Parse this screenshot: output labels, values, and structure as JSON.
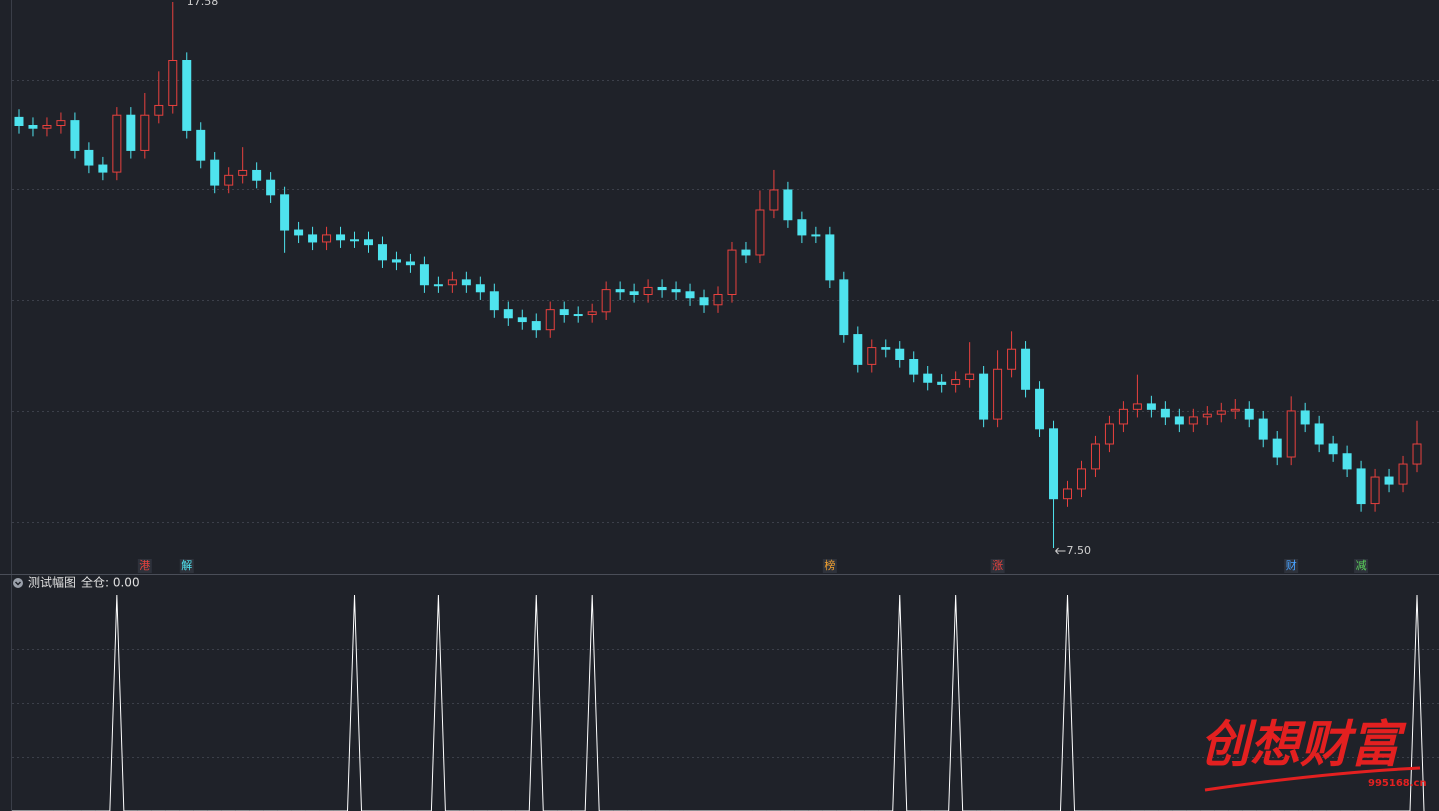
{
  "chart_data": {
    "type": "candlestick",
    "ylim": [
      7.5,
      17.58
    ],
    "gridlines": [
      16.14,
      14.13,
      12.08,
      10.03,
      7.98
    ],
    "up_color": "#e8413e",
    "down_color": "#4fe3ee",
    "open": [
      15.45,
      15.3,
      15.25,
      15.3,
      15.39,
      14.84,
      14.57,
      14.44,
      15.49,
      14.84,
      15.49,
      15.67,
      16.5,
      15.21,
      14.66,
      14.2,
      14.38,
      14.47,
      14.29,
      14.02,
      13.37,
      13.28,
      13.15,
      13.28,
      13.19,
      13.19,
      13.1,
      12.82,
      12.78,
      12.73,
      12.36,
      12.36,
      12.45,
      12.36,
      12.23,
      11.9,
      11.75,
      11.68,
      11.53,
      11.9,
      11.81,
      11.81,
      11.86,
      12.27,
      12.23,
      12.18,
      12.31,
      12.27,
      12.23,
      12.12,
      11.99,
      12.18,
      13.0,
      12.91,
      13.74,
      14.11,
      13.56,
      13.28,
      13.28,
      12.45,
      11.44,
      10.89,
      11.2,
      11.17,
      10.98,
      10.71,
      10.56,
      10.52,
      10.61,
      10.71,
      9.88,
      10.8,
      11.17,
      10.43,
      9.7,
      8.41,
      8.59,
      8.96,
      9.42,
      9.79,
      10.06,
      10.16,
      10.06,
      9.92,
      9.79,
      9.92,
      9.97,
      10.03,
      10.06,
      9.88,
      9.51,
      9.18,
      10.03,
      9.79,
      9.42,
      9.24,
      8.96,
      8.32,
      8.81,
      8.68,
      9.05
    ],
    "high": [
      15.6,
      15.45,
      15.45,
      15.54,
      15.54,
      14.99,
      14.72,
      15.64,
      15.64,
      15.9,
      16.3,
      17.58,
      16.65,
      15.36,
      14.81,
      14.53,
      14.9,
      14.62,
      14.44,
      14.17,
      13.52,
      13.43,
      13.43,
      13.43,
      13.34,
      13.34,
      13.25,
      12.97,
      12.93,
      12.88,
      12.51,
      12.6,
      12.6,
      12.51,
      12.38,
      12.05,
      11.9,
      11.83,
      12.05,
      12.05,
      11.96,
      12.01,
      12.42,
      12.42,
      12.38,
      12.46,
      12.46,
      12.42,
      12.38,
      12.27,
      12.33,
      13.15,
      13.15,
      14.1,
      14.48,
      14.26,
      13.71,
      13.43,
      13.43,
      12.6,
      11.59,
      11.35,
      11.35,
      11.32,
      11.13,
      10.86,
      10.71,
      10.76,
      11.3,
      10.86,
      11.15,
      11.5,
      11.32,
      10.58,
      9.85,
      8.74,
      9.11,
      9.57,
      9.94,
      10.21,
      10.7,
      10.31,
      10.21,
      10.07,
      10.07,
      10.12,
      10.18,
      10.25,
      10.21,
      10.03,
      9.66,
      10.3,
      10.18,
      9.94,
      9.57,
      9.39,
      9.11,
      8.96,
      8.96,
      9.2,
      9.85
    ],
    "low": [
      15.15,
      15.1,
      15.1,
      15.15,
      14.69,
      14.42,
      14.29,
      14.29,
      14.69,
      14.69,
      15.34,
      15.52,
      15.06,
      14.51,
      14.05,
      14.05,
      14.23,
      14.14,
      13.87,
      12.95,
      13.13,
      13.0,
      13.0,
      13.04,
      13.04,
      12.95,
      12.67,
      12.63,
      12.58,
      12.21,
      12.21,
      12.21,
      12.21,
      12.08,
      11.75,
      11.6,
      11.53,
      11.38,
      11.38,
      11.66,
      11.66,
      11.66,
      11.71,
      12.08,
      12.03,
      12.03,
      12.12,
      12.08,
      11.97,
      11.84,
      11.84,
      12.03,
      12.76,
      12.76,
      13.59,
      13.41,
      13.13,
      13.13,
      12.3,
      11.29,
      10.74,
      10.74,
      11.02,
      10.83,
      10.56,
      10.41,
      10.37,
      10.37,
      10.46,
      9.73,
      9.73,
      10.65,
      10.28,
      9.55,
      7.5,
      8.26,
      8.44,
      8.81,
      9.27,
      9.64,
      9.91,
      9.91,
      9.77,
      9.64,
      9.64,
      9.77,
      9.82,
      9.88,
      9.73,
      9.36,
      9.03,
      9.03,
      9.64,
      9.27,
      9.09,
      8.81,
      8.17,
      8.17,
      8.53,
      8.53,
      8.9
    ],
    "close": [
      15.3,
      15.25,
      15.3,
      15.39,
      14.84,
      14.57,
      14.44,
      15.49,
      14.84,
      15.49,
      15.67,
      16.5,
      15.21,
      14.66,
      14.2,
      14.38,
      14.47,
      14.29,
      14.02,
      13.37,
      13.28,
      13.15,
      13.28,
      13.19,
      13.19,
      13.1,
      12.82,
      12.78,
      12.73,
      12.36,
      12.36,
      12.45,
      12.36,
      12.23,
      11.9,
      11.75,
      11.68,
      11.53,
      11.9,
      11.81,
      11.81,
      11.86,
      12.27,
      12.23,
      12.18,
      12.31,
      12.27,
      12.23,
      12.12,
      11.99,
      12.18,
      13.0,
      12.91,
      13.74,
      14.11,
      13.56,
      13.28,
      13.28,
      12.45,
      11.44,
      10.89,
      11.2,
      11.17,
      10.98,
      10.71,
      10.56,
      10.52,
      10.61,
      10.71,
      9.88,
      10.8,
      11.17,
      10.43,
      9.7,
      8.41,
      8.59,
      8.96,
      9.42,
      9.79,
      10.06,
      10.16,
      10.06,
      9.92,
      9.79,
      9.92,
      9.97,
      10.03,
      10.06,
      9.88,
      9.51,
      9.18,
      10.03,
      9.79,
      9.42,
      9.24,
      8.96,
      8.32,
      8.81,
      8.68,
      9.05,
      9.42
    ],
    "annotations": [
      {
        "index": 11,
        "value": 17.58
      },
      {
        "index": 74,
        "value": {
          "value": 7.5,
          "label": "7.50"
        }
      }
    ],
    "events": [
      {
        "label": "港",
        "index": 9,
        "color": "#e8413e"
      },
      {
        "label": "解",
        "index": 12,
        "color": "#4fe3ee"
      },
      {
        "label": "榜",
        "index": 58,
        "color": "#f0a030"
      },
      {
        "label": "涨",
        "index": 70,
        "color": "#e8413e"
      },
      {
        "label": "财",
        "index": 91,
        "color": "#4aa3ff"
      },
      {
        "label": "减",
        "index": 96,
        "color": "#5ad35a"
      }
    ],
    "indicator": {
      "name": "测试幅图",
      "status": "全仓: 0.00",
      "ylim": [
        0,
        1
      ],
      "gridlines": [
        0.25,
        0.5,
        0.75
      ],
      "color": "#ffffff",
      "values": [
        0,
        0,
        0,
        0,
        0,
        0,
        0,
        1,
        0,
        0,
        0,
        0,
        0,
        0,
        0,
        0,
        0,
        0,
        0,
        0,
        0,
        0,
        0,
        0,
        1,
        0,
        0,
        0,
        0,
        0,
        1,
        0,
        0,
        0,
        0,
        0,
        0,
        1,
        0,
        0,
        0,
        1,
        0,
        0,
        0,
        0,
        0,
        0,
        0,
        0,
        0,
        0,
        0,
        0,
        0,
        0,
        0,
        0,
        0,
        0,
        0,
        0,
        0,
        1,
        0,
        0,
        0,
        1,
        0,
        0,
        0,
        0,
        0,
        0,
        0,
        1,
        0,
        0,
        0,
        0,
        0,
        0,
        0,
        0,
        0,
        0,
        0,
        0,
        0,
        0,
        0,
        0,
        0,
        0,
        0,
        0,
        0,
        0,
        0,
        0,
        1
      ]
    }
  },
  "watermark": {
    "title": "创想财富",
    "site": "995168.cn"
  }
}
